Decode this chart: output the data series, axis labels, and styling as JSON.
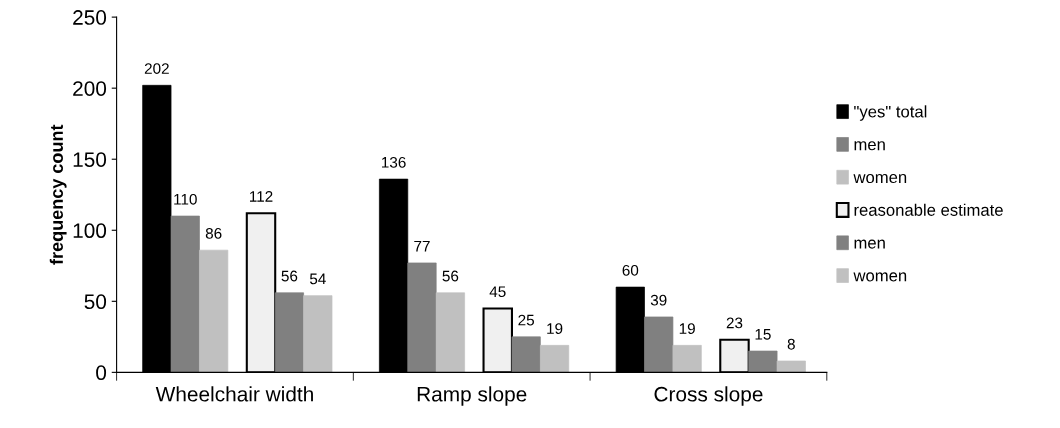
{
  "chart_data": {
    "type": "bar",
    "ylabel": "frequency count",
    "categories": [
      "Wheelchair width",
      "Ramp slope",
      "Cross slope"
    ],
    "series": [
      {
        "name": "\"yes\" total",
        "color": "#000000",
        "values": [
          202,
          136,
          60
        ]
      },
      {
        "name": "men",
        "color": "#808080",
        "values": [
          110,
          77,
          39
        ]
      },
      {
        "name": "women",
        "color": "#c0c0c0",
        "values": [
          86,
          56,
          19
        ]
      },
      {
        "name": "reasonable estimate",
        "color": "#f0f0f0",
        "values": [
          112,
          45,
          23
        ]
      },
      {
        "name": "men",
        "color": "#808080",
        "values": [
          56,
          25,
          15
        ]
      },
      {
        "name": "women",
        "color": "#c0c0c0",
        "values": [
          54,
          19,
          8
        ]
      }
    ],
    "ylim": [
      0,
      250
    ],
    "yticks": [
      0,
      50,
      100,
      150,
      200,
      250
    ],
    "data_labels": true,
    "legend": "right",
    "grid": false
  }
}
